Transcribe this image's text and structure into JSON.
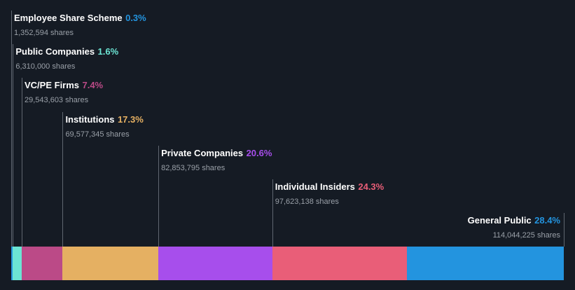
{
  "chart_data": {
    "type": "bar",
    "orientation": "horizontal-stacked",
    "unit_label": "shares",
    "categories": [
      "Employee Share Scheme",
      "Public Companies",
      "VC/PE Firms",
      "Institutions",
      "Private Companies",
      "Individual Insiders",
      "General Public"
    ],
    "series": [
      {
        "label": "Employee Share Scheme",
        "percent_text": "0.3%",
        "percent": 0.3,
        "shares_text": "1,352,594 shares",
        "shares": 1352594,
        "color": "#2394df"
      },
      {
        "label": "Public Companies",
        "percent_text": "1.6%",
        "percent": 1.6,
        "shares_text": "6,310,000 shares",
        "shares": 6310000,
        "color": "#6ce5d4"
      },
      {
        "label": "VC/PE Firms",
        "percent_text": "7.4%",
        "percent": 7.4,
        "shares_text": "29,543,603 shares",
        "shares": 29543603,
        "color": "#bb4a87"
      },
      {
        "label": "Institutions",
        "percent_text": "17.3%",
        "percent": 17.3,
        "shares_text": "69,577,345 shares",
        "shares": 69577345,
        "color": "#e5b062"
      },
      {
        "label": "Private Companies",
        "percent_text": "20.6%",
        "percent": 20.6,
        "shares_text": "82,853,795 shares",
        "shares": 82853795,
        "color": "#a74eec"
      },
      {
        "label": "Individual Insiders",
        "percent_text": "24.3%",
        "percent": 24.3,
        "shares_text": "97,623,138 shares",
        "shares": 97623138,
        "color": "#e95e78"
      },
      {
        "label": "General Public",
        "percent_text": "28.4%",
        "percent": 28.4,
        "shares_text": "114,044,225 shares",
        "shares": 114044225,
        "color": "#2394df"
      }
    ]
  }
}
